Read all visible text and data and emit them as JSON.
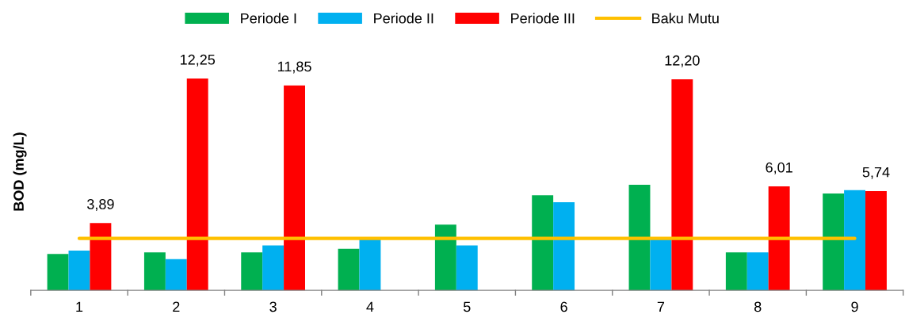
{
  "chart_data": {
    "type": "bar",
    "ylabel": "BOD (mg/L)",
    "categories": [
      "1",
      "2",
      "3",
      "4",
      "5",
      "6",
      "7",
      "8",
      "9"
    ],
    "series": [
      {
        "name": "Periode I",
        "color": "#00b050",
        "values": [
          2.1,
          2.2,
          2.2,
          2.4,
          3.8,
          5.5,
          6.1,
          2.2,
          5.6
        ]
      },
      {
        "name": "Periode II",
        "color": "#00b0f0",
        "values": [
          2.3,
          1.8,
          2.6,
          3.0,
          2.6,
          5.1,
          3.0,
          2.2,
          5.8
        ]
      },
      {
        "name": "Periode III",
        "color": "#ff0000",
        "values": [
          3.89,
          12.25,
          11.85,
          null,
          null,
          null,
          12.2,
          6.01,
          5.74
        ],
        "value_labels": [
          "3,89",
          "12,25",
          "11,85",
          null,
          null,
          null,
          "12,20",
          "6,01",
          "5,74"
        ]
      },
      {
        "name": "Baku Mutu",
        "type": "line",
        "color": "#ffc000",
        "values": [
          3,
          3,
          3,
          3,
          3,
          3,
          3,
          3,
          3
        ]
      }
    ],
    "legend": "top",
    "grid": false
  }
}
